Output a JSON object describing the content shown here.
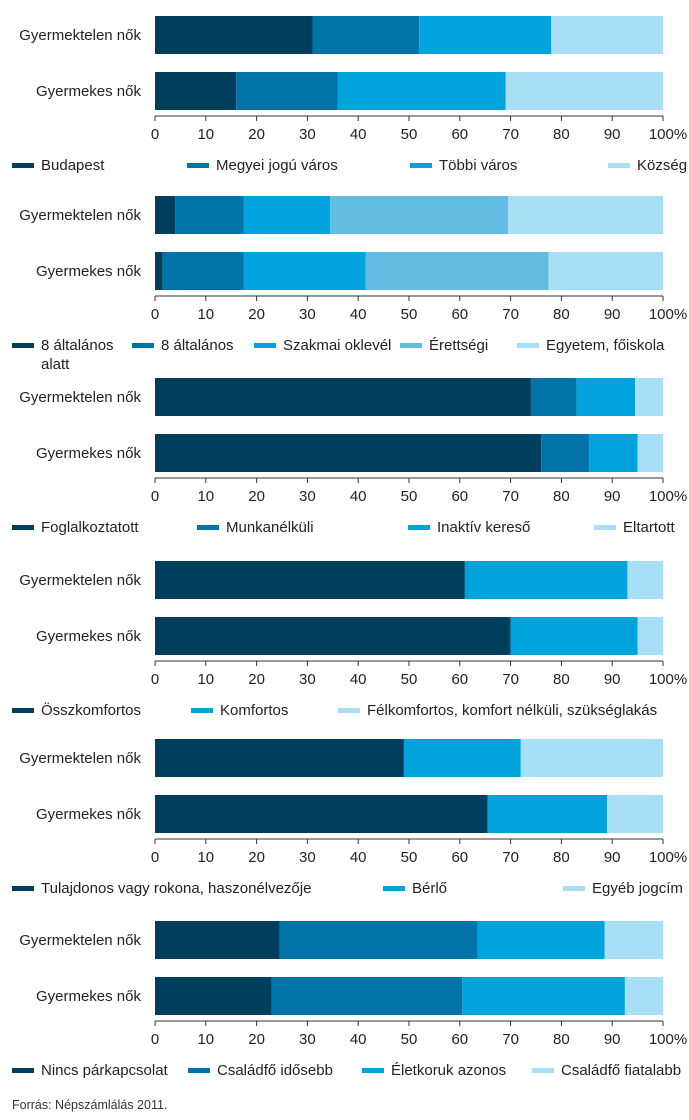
{
  "source_note": "Forrás: Népszámlálás 2011.",
  "colors": {
    "c1": "#003f5c",
    "c2": "#0073a8",
    "c3": "#00a3dc",
    "c4": "#63bde3",
    "c5": "#a9def7"
  },
  "chart_data": [
    {
      "type": "bar",
      "orientation": "horizontal",
      "stacked": true,
      "categories": [
        "Gyermektelen nők",
        "Gyermekes nők"
      ],
      "xlim": [
        0,
        100
      ],
      "xticks": [
        "0",
        "10",
        "20",
        "30",
        "40",
        "50",
        "60",
        "70",
        "80",
        "90",
        "100%"
      ],
      "series": [
        {
          "name": "Budapest",
          "color": "#003f5c",
          "values": [
            31,
            16
          ]
        },
        {
          "name": "Megyei jogú város",
          "color": "#0073a8",
          "values": [
            21,
            20
          ]
        },
        {
          "name": "Többi város",
          "color": "#00a3dc",
          "values": [
            26,
            33
          ]
        },
        {
          "name": "Község",
          "color": "#a9def7",
          "values": [
            22,
            31
          ]
        }
      ]
    },
    {
      "type": "bar",
      "orientation": "horizontal",
      "stacked": true,
      "categories": [
        "Gyermektelen nők",
        "Gyermekes nők"
      ],
      "xlim": [
        0,
        100
      ],
      "xticks": [
        "0",
        "10",
        "20",
        "30",
        "40",
        "50",
        "60",
        "70",
        "80",
        "90",
        "100%"
      ],
      "series": [
        {
          "name": "8 általános alatt",
          "color": "#003f5c",
          "values": [
            4,
            1.5
          ]
        },
        {
          "name": "8 általános",
          "color": "#0073a8",
          "values": [
            13.5,
            16
          ]
        },
        {
          "name": "Szakmai oklevél",
          "color": "#00a3dc",
          "values": [
            17,
            24
          ]
        },
        {
          "name": "Érettségi",
          "color": "#63bde3",
          "values": [
            35,
            36
          ]
        },
        {
          "name": "Egyetem, főiskola",
          "color": "#a9def7",
          "values": [
            30.5,
            22.5
          ]
        }
      ]
    },
    {
      "type": "bar",
      "orientation": "horizontal",
      "stacked": true,
      "categories": [
        "Gyermektelen nők",
        "Gyermekes nők"
      ],
      "xlim": [
        0,
        100
      ],
      "xticks": [
        "0",
        "10",
        "20",
        "30",
        "40",
        "50",
        "60",
        "70",
        "80",
        "90",
        "100%"
      ],
      "series": [
        {
          "name": "Foglalkoztatott",
          "color": "#003f5c",
          "values": [
            74,
            76
          ]
        },
        {
          "name": "Munkanélküli",
          "color": "#0073a8",
          "values": [
            9,
            9.5
          ]
        },
        {
          "name": "Inaktív kereső",
          "color": "#00a3dc",
          "values": [
            11.5,
            9.5
          ]
        },
        {
          "name": "Eltartott",
          "color": "#a9def7",
          "values": [
            5.5,
            5
          ]
        }
      ]
    },
    {
      "type": "bar",
      "orientation": "horizontal",
      "stacked": true,
      "categories": [
        "Gyermektelen nők",
        "Gyermekes nők"
      ],
      "xlim": [
        0,
        100
      ],
      "xticks": [
        "0",
        "10",
        "20",
        "30",
        "40",
        "50",
        "60",
        "70",
        "80",
        "90",
        "100%"
      ],
      "series": [
        {
          "name": "Összkomfortos",
          "color": "#003f5c",
          "values": [
            61,
            70
          ]
        },
        {
          "name": "Komfortos",
          "color": "#00a3dc",
          "values": [
            32,
            25
          ]
        },
        {
          "name": "Félkomfortos, komfort nélküli, szükséglakás",
          "color": "#a9def7",
          "values": [
            7,
            5
          ]
        }
      ]
    },
    {
      "type": "bar",
      "orientation": "horizontal",
      "stacked": true,
      "categories": [
        "Gyermektelen nők",
        "Gyermekes nők"
      ],
      "xlim": [
        0,
        100
      ],
      "xticks": [
        "0",
        "10",
        "20",
        "30",
        "40",
        "50",
        "60",
        "70",
        "80",
        "90",
        "100%"
      ],
      "series": [
        {
          "name": "Tulajdonos vagy rokona, haszonélvezője",
          "color": "#003f5c",
          "values": [
            49,
            65.5
          ]
        },
        {
          "name": "Bérlő",
          "color": "#00a3dc",
          "values": [
            23,
            23.5
          ]
        },
        {
          "name": "Egyéb jogcím",
          "color": "#a9def7",
          "values": [
            28,
            11
          ]
        }
      ]
    },
    {
      "type": "bar",
      "orientation": "horizontal",
      "stacked": true,
      "categories": [
        "Gyermektelen nők",
        "Gyermekes nők"
      ],
      "xlim": [
        0,
        100
      ],
      "xticks": [
        "0",
        "10",
        "20",
        "30",
        "40",
        "50",
        "60",
        "70",
        "80",
        "90",
        "100%"
      ],
      "series": [
        {
          "name": "Nincs párkapcsolat",
          "color": "#003f5c",
          "values": [
            24.5,
            23
          ]
        },
        {
          "name": "Családfő idősebb",
          "color": "#0073a8",
          "values": [
            39,
            37.5
          ]
        },
        {
          "name": "Életkoruk azonos",
          "color": "#00a3dc",
          "values": [
            25,
            32
          ]
        },
        {
          "name": "Családfő fiatalabb",
          "color": "#a9def7",
          "values": [
            11.5,
            7.5
          ]
        }
      ]
    }
  ]
}
